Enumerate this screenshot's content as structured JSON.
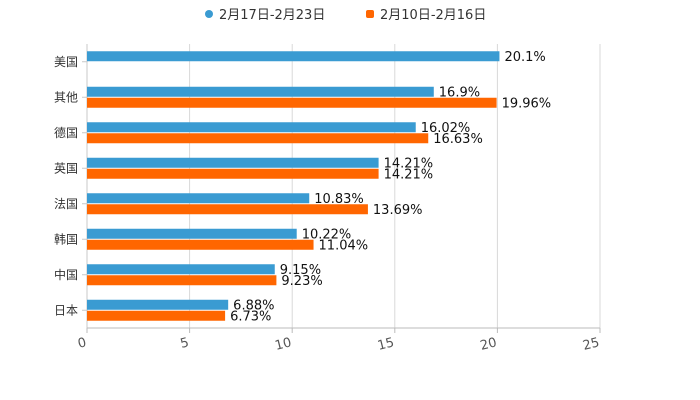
{
  "chart_data": {
    "type": "bar",
    "orientation": "horizontal",
    "categories": [
      "美国",
      "其他",
      "德国",
      "英国",
      "法国",
      "韩国",
      "中国",
      "日本"
    ],
    "series": [
      {
        "name": "2月17日-2月23日",
        "color": "#3a9bd2",
        "values": [
          20.1,
          16.9,
          16.02,
          14.21,
          10.83,
          10.22,
          9.15,
          6.88
        ],
        "labels": [
          "20.1%",
          "16.9%",
          "16.02%",
          "14.21%",
          "10.83%",
          "10.22%",
          "9.15%",
          "6.88%"
        ]
      },
      {
        "name": "2月10日-2月16日",
        "color": "#ff6600",
        "values": [
          null,
          19.96,
          16.63,
          14.21,
          13.69,
          11.04,
          9.23,
          6.73
        ],
        "labels": [
          null,
          "19.96%",
          "16.63%",
          "14.21%",
          "13.69%",
          "11.04%",
          "9.23%",
          "6.73%"
        ]
      }
    ],
    "xlim": [
      0,
      25
    ],
    "xticks": [
      0,
      5,
      10,
      15,
      20,
      25
    ],
    "xtick_labels": [
      "0",
      "5",
      "10",
      "15",
      "20",
      "25"
    ],
    "grid": true,
    "legend_position": "top-center"
  }
}
